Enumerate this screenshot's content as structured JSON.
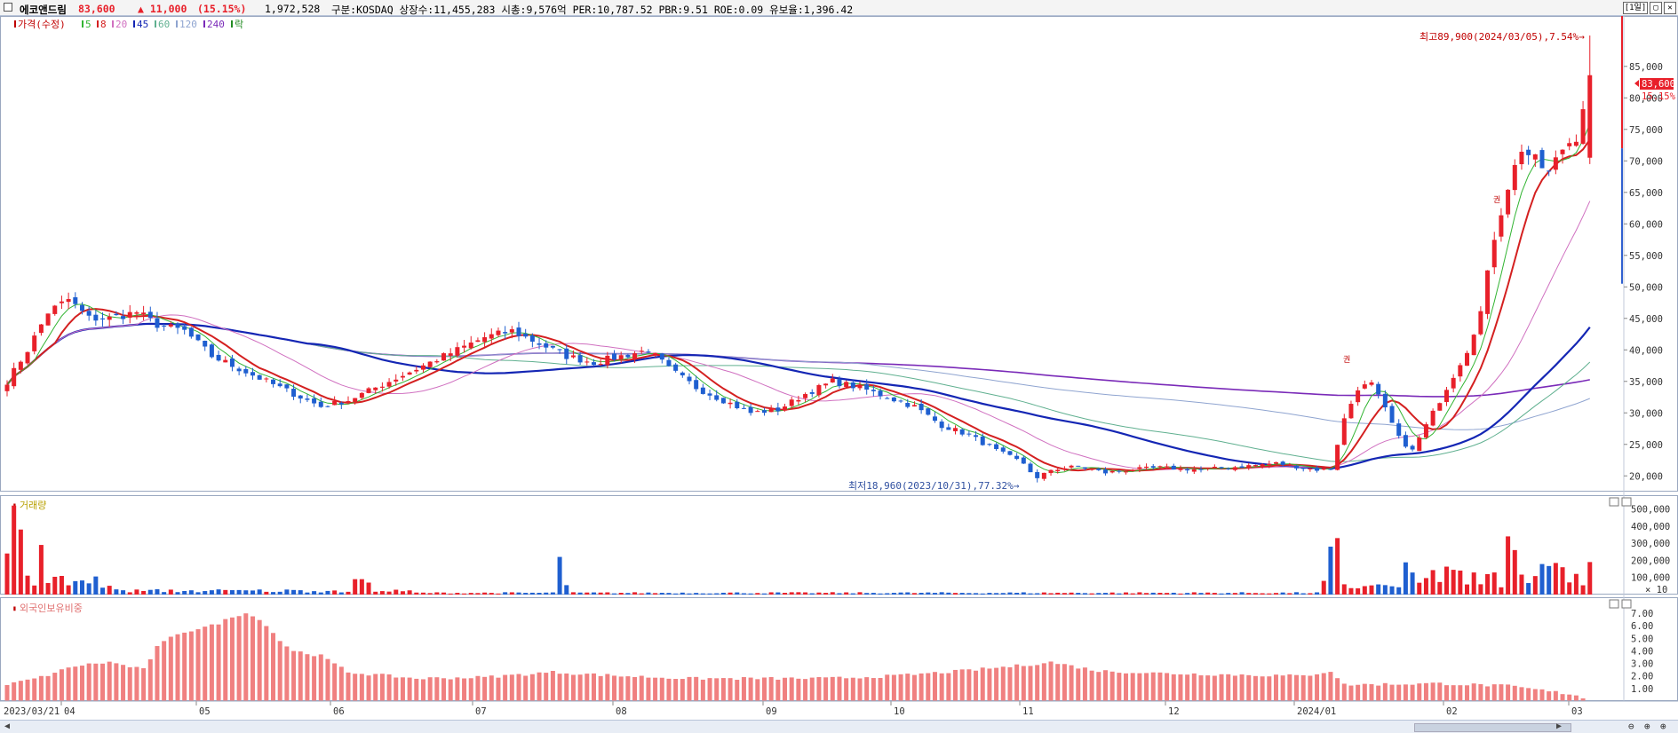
{
  "header": {
    "stock_name": "에코앤드림",
    "price": "83,600",
    "change": "▲ 11,000",
    "change_pct": "(15.15%)",
    "volume": "1,972,528",
    "info": "구분:KOSDAQ 상장수:11,455,283 시총:9,576억 PER:10,787.52 PBR:9.51 ROE:0.09 유보율:1,396.42",
    "period": "[1일]",
    "btn_restore": "▢",
    "btn_close": "✕"
  },
  "colors": {
    "up": "#e8202a",
    "down": "#1f5fd0",
    "ma5": "#32b432",
    "ma8": "#d42020",
    "ma20": "#d070c0",
    "ma45": "#1426b4",
    "ma60": "#60b090",
    "ma120": "#8fa4d0",
    "ma240": "#7a2ab8",
    "foreign": "#f08080"
  },
  "chart_data": {
    "type": "candlestick",
    "legend": [
      {
        "label": "가격(수정)",
        "color": "#c00000"
      },
      {
        "label": "5",
        "color": "#32b432"
      },
      {
        "label": "8",
        "color": "#d42020"
      },
      {
        "label": "20",
        "color": "#d070c0"
      },
      {
        "label": "45",
        "color": "#1426b4"
      },
      {
        "label": "60",
        "color": "#60b090"
      },
      {
        "label": "120",
        "color": "#8fa4d0"
      },
      {
        "label": "240",
        "color": "#7a2ab8"
      },
      {
        "label": "락",
        "color": "#228b22"
      }
    ],
    "price_axis": {
      "ticks": [
        20000,
        25000,
        30000,
        35000,
        40000,
        45000,
        50000,
        55000,
        60000,
        65000,
        70000,
        75000,
        80000,
        85000
      ],
      "labels": [
        "20,000",
        "25,000",
        "30,000",
        "35,000",
        "40,000",
        "45,000",
        "50,000",
        "55,000",
        "60,000",
        "65,000",
        "70,000",
        "75,000",
        "80,000",
        "85,000"
      ],
      "range": [
        17500,
        93000
      ]
    },
    "x_labels": [
      "2023/03/21",
      "04",
      "05",
      "06",
      "07",
      "08",
      "09",
      "10",
      "11",
      "12",
      "2024/01",
      "02",
      "03"
    ],
    "annotations": {
      "high": "최고89,900(2024/03/05),7.54%→",
      "low": "최저18,960(2023/10/31),77.32%→",
      "current_price": "83,600",
      "current_pct": "15.15%",
      "rights_marks": [
        "권",
        "권"
      ]
    },
    "price_anchors": [
      [
        0,
        35000
      ],
      [
        3,
        40000
      ],
      [
        6,
        46000
      ],
      [
        9,
        48000
      ],
      [
        12,
        45000
      ],
      [
        15,
        45000
      ],
      [
        19,
        46000
      ],
      [
        22,
        44000
      ],
      [
        26,
        43000
      ],
      [
        30,
        39000
      ],
      [
        34,
        37000
      ],
      [
        38,
        35000
      ],
      [
        42,
        33000
      ],
      [
        46,
        31000
      ],
      [
        50,
        32000
      ],
      [
        54,
        34000
      ],
      [
        58,
        36000
      ],
      [
        62,
        38000
      ],
      [
        66,
        40000
      ],
      [
        70,
        42000
      ],
      [
        74,
        43000
      ],
      [
        78,
        41000
      ],
      [
        82,
        39000
      ],
      [
        86,
        38000
      ],
      [
        90,
        39000
      ],
      [
        94,
        40000
      ],
      [
        97,
        37000
      ],
      [
        101,
        34000
      ],
      [
        105,
        32000
      ],
      [
        109,
        30000
      ],
      [
        113,
        30500
      ],
      [
        117,
        33000
      ],
      [
        121,
        35000
      ],
      [
        125,
        34000
      ],
      [
        129,
        32500
      ],
      [
        133,
        31000
      ],
      [
        137,
        28000
      ],
      [
        141,
        26500
      ],
      [
        145,
        24000
      ],
      [
        149,
        22000
      ],
      [
        151,
        19500
      ],
      [
        153,
        21000
      ],
      [
        157,
        21500
      ],
      [
        161,
        20500
      ],
      [
        165,
        21000
      ],
      [
        169,
        21300
      ],
      [
        175,
        21000
      ],
      [
        181,
        21500
      ],
      [
        186,
        22000
      ],
      [
        192,
        21000
      ],
      [
        194,
        21200
      ],
      [
        196,
        29000
      ],
      [
        198,
        34000
      ],
      [
        200,
        34500
      ],
      [
        202,
        30500
      ],
      [
        204,
        26000
      ],
      [
        206,
        24000
      ],
      [
        208,
        28000
      ],
      [
        210,
        32000
      ],
      [
        212,
        36000
      ],
      [
        214,
        40000
      ],
      [
        216,
        46000
      ],
      [
        218,
        58000
      ],
      [
        220,
        66000
      ],
      [
        222,
        72000
      ],
      [
        224,
        70000
      ],
      [
        226,
        68000
      ],
      [
        228,
        72000
      ],
      [
        230,
        74000
      ],
      [
        232,
        83600
      ]
    ],
    "volume_axis": {
      "labels": [
        "500,000",
        "400,000",
        "300,000",
        "200,000",
        "100,000",
        "× 10"
      ],
      "values": [
        500000,
        400000,
        300000,
        200000,
        100000
      ]
    },
    "volume_title": "거래량",
    "foreign_title": "외국인보유비중",
    "foreign_axis": {
      "labels": [
        "7.00",
        "6.00",
        "5.00",
        "4.00",
        "3.00",
        "2.00",
        "1.00"
      ],
      "values": [
        7,
        6,
        5,
        4,
        3,
        2,
        1
      ]
    },
    "foreign_anchors": [
      [
        0,
        1.3
      ],
      [
        5,
        1.9
      ],
      [
        10,
        2.8
      ],
      [
        15,
        3.1
      ],
      [
        20,
        2.5
      ],
      [
        22,
        4.3
      ],
      [
        25,
        5.4
      ],
      [
        30,
        6.0
      ],
      [
        35,
        7.1
      ],
      [
        38,
        6.1
      ],
      [
        40,
        4.8
      ],
      [
        42,
        4.0
      ],
      [
        46,
        3.6
      ],
      [
        50,
        2.3
      ],
      [
        60,
        1.8
      ],
      [
        70,
        1.9
      ],
      [
        80,
        2.3
      ],
      [
        90,
        2.0
      ],
      [
        100,
        1.8
      ],
      [
        110,
        1.8
      ],
      [
        120,
        1.8
      ],
      [
        130,
        2.0
      ],
      [
        140,
        2.4
      ],
      [
        148,
        2.8
      ],
      [
        153,
        3.1
      ],
      [
        160,
        2.4
      ],
      [
        170,
        2.2
      ],
      [
        180,
        2.1
      ],
      [
        190,
        2.0
      ],
      [
        194,
        2.4
      ],
      [
        196,
        1.3
      ],
      [
        210,
        1.4
      ],
      [
        220,
        1.2
      ],
      [
        230,
        0.5
      ],
      [
        232,
        0.0
      ]
    ]
  }
}
